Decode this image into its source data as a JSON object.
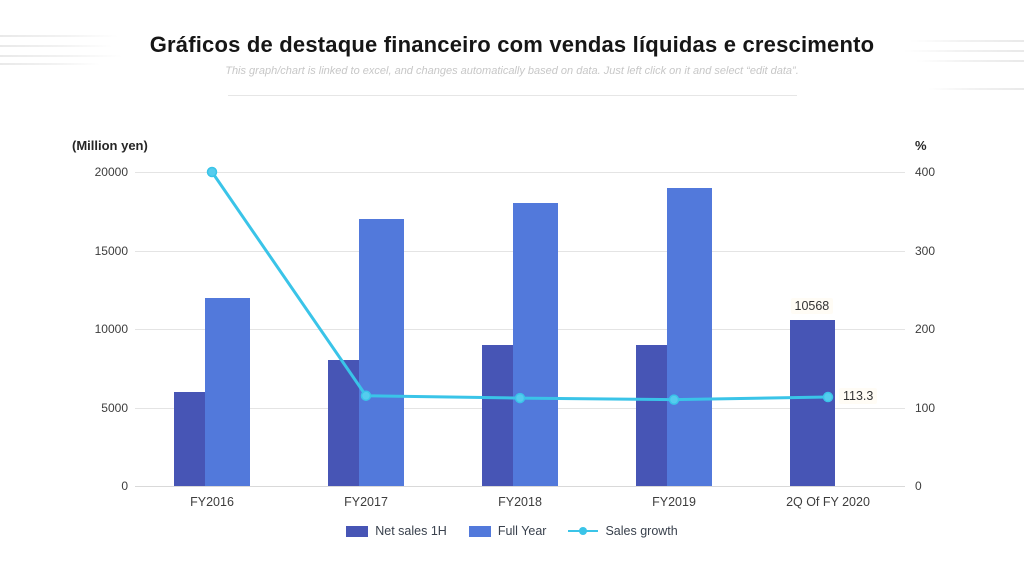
{
  "page": {
    "title": "Gráficos de destaque financeiro com vendas líquidas e crescimento",
    "subtitle": "This graph/chart is linked to excel, and changes automatically based on data. Just left click on it and select “edit data”."
  },
  "chart_data": {
    "type": "bar",
    "subtype": "combo-bar-line",
    "categories": [
      "FY2016",
      "FY2017",
      "FY2018",
      "FY2019",
      "2Q Of FY 2020"
    ],
    "series": [
      {
        "name": "Net sales 1H",
        "type": "bar",
        "axis": "left",
        "color": "#4755b5",
        "values": [
          6000,
          8000,
          9000,
          9000,
          10568
        ]
      },
      {
        "name": "Full Year",
        "type": "bar",
        "axis": "left",
        "color": "#5279db",
        "values": [
          12000,
          17000,
          18000,
          19000,
          null
        ]
      },
      {
        "name": "Sales growth",
        "type": "line",
        "axis": "right",
        "color": "#3ac4e8",
        "values": [
          400,
          115,
          112,
          110,
          113.3
        ]
      }
    ],
    "left_axis": {
      "title": "(Million yen)",
      "min": 0,
      "max": 20000,
      "ticks": [
        0,
        5000,
        10000,
        15000,
        20000
      ]
    },
    "right_axis": {
      "title": "%",
      "min": 0,
      "max": 400,
      "ticks": [
        0,
        100,
        200,
        300,
        400
      ]
    },
    "data_labels": [
      {
        "text": "10568",
        "attach": "bar",
        "series": 0,
        "index": 4
      },
      {
        "text": "113.3",
        "attach": "line",
        "series": 2,
        "index": 4
      }
    ],
    "legend": [
      {
        "label": "Net sales 1H",
        "marker": "square",
        "color": "#4755b5"
      },
      {
        "label": "Full Year",
        "marker": "square",
        "color": "#5279db"
      },
      {
        "label": "Sales growth",
        "marker": "line-dot",
        "color": "#3ac4e8"
      }
    ],
    "grid": true,
    "legend_position": "bottom"
  }
}
